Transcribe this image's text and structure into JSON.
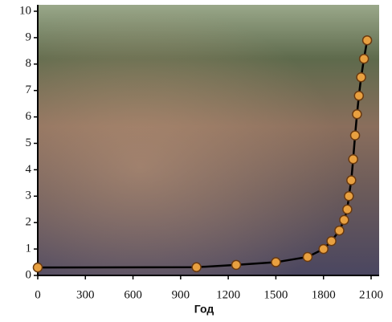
{
  "chart_data": {
    "type": "line",
    "x_label": "Год",
    "x": [
      0,
      1000,
      1250,
      1500,
      1700,
      1800,
      1850,
      1900,
      1930,
      1950,
      1960,
      1975,
      1987,
      1999,
      2011,
      2023,
      2037,
      2055,
      2075
    ],
    "series": [
      {
        "color": "#e8a040",
        "values": [
          0.3,
          0.31,
          0.4,
          0.5,
          0.7,
          1.0,
          1.3,
          1.7,
          2.1,
          2.5,
          3.0,
          3.6,
          4.4,
          5.3,
          6.1,
          6.8,
          7.5,
          8.2,
          8.9
        ]
      }
    ],
    "xlim": [
      0,
      2100
    ],
    "xticks": [
      0,
      300,
      600,
      900,
      1200,
      1500,
      1800,
      2100
    ],
    "ylim": [
      0,
      10
    ],
    "yticks": [
      0,
      1,
      2,
      3,
      4,
      5,
      6,
      7,
      8,
      9,
      10
    ]
  }
}
